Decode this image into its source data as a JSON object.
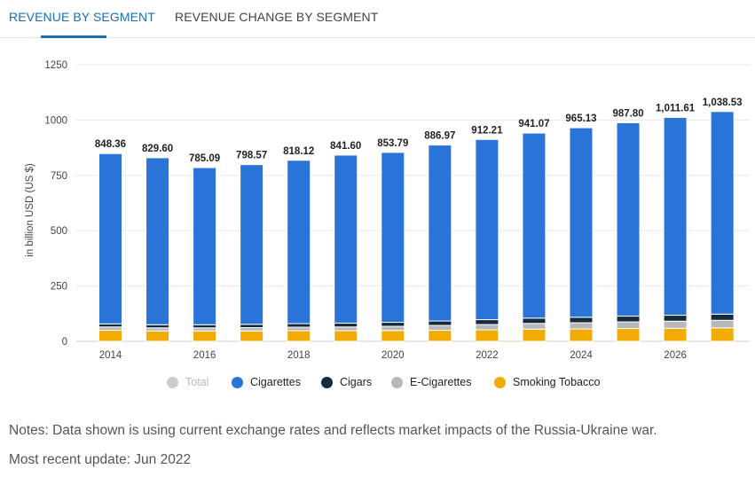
{
  "tabs": {
    "active_label": "REVENUE BY SEGMENT",
    "inactive_label": "REVENUE CHANGE BY SEGMENT"
  },
  "legend": {
    "items": [
      {
        "label": "Total",
        "color": "#cccccc",
        "enabled": false
      },
      {
        "label": "Cigarettes",
        "color": "#2a74d9",
        "enabled": true
      },
      {
        "label": "Cigars",
        "color": "#152a3d",
        "enabled": true
      },
      {
        "label": "E-Cigarettes",
        "color": "#b8b8b8",
        "enabled": true
      },
      {
        "label": "Smoking Tobacco",
        "color": "#f2ab00",
        "enabled": true
      }
    ]
  },
  "notes": {
    "text": "Notes: Data shown is using current exchange rates and reflects market impacts of the Russia-Ukraine war.",
    "update": "Most recent update: Jun 2022"
  },
  "chart_data": {
    "type": "bar",
    "stacked": true,
    "ylabel": "in billion USD (US $)",
    "ylim": [
      0,
      1250
    ],
    "yticks": [
      0,
      250,
      500,
      750,
      1000,
      1250
    ],
    "categories": [
      "2014",
      "2015",
      "2016",
      "2017",
      "2018",
      "2019",
      "2020",
      "2021",
      "2022",
      "2023",
      "2024",
      "2025",
      "2026",
      "2027"
    ],
    "xtick_labels": [
      "2014",
      "",
      "2016",
      "",
      "2018",
      "",
      "2020",
      "",
      "2022",
      "",
      "2024",
      "",
      "2026",
      ""
    ],
    "totals": [
      848.36,
      829.6,
      785.09,
      798.57,
      818.12,
      841.6,
      853.79,
      886.97,
      912.21,
      941.07,
      965.13,
      987.8,
      1011.61,
      1038.53
    ],
    "total_labels": [
      "848.36",
      "829.60",
      "785.09",
      "798.57",
      "818.12",
      "841.60",
      "853.79",
      "886.97",
      "912.21",
      "941.07",
      "965.13",
      "987.80",
      "1,011.61",
      "1,038.53"
    ],
    "series": [
      {
        "name": "Smoking Tobacco",
        "color": "#f2ab00",
        "values": [
          50,
          47,
          47,
          47,
          48,
          48,
          49,
          50,
          52,
          55,
          56,
          58,
          59,
          61
        ]
      },
      {
        "name": "E-Cigarettes",
        "color": "#b8b8b8",
        "values": [
          15,
          14,
          14,
          15,
          16,
          17,
          19,
          22,
          24,
          26,
          28,
          30,
          32,
          34
        ]
      },
      {
        "name": "Cigars",
        "color": "#152a3d",
        "values": [
          14,
          14,
          14,
          15,
          16,
          17,
          18,
          20,
          22,
          24,
          25,
          26,
          27,
          28
        ]
      },
      {
        "name": "Cigarettes",
        "color": "#2a74d9",
        "values": [
          769.36,
          754.6,
          710.09,
          721.57,
          738.12,
          759.6,
          767.79,
          794.97,
          814.21,
          836.07,
          856.13,
          873.8,
          893.61,
          915.53
        ]
      }
    ]
  }
}
